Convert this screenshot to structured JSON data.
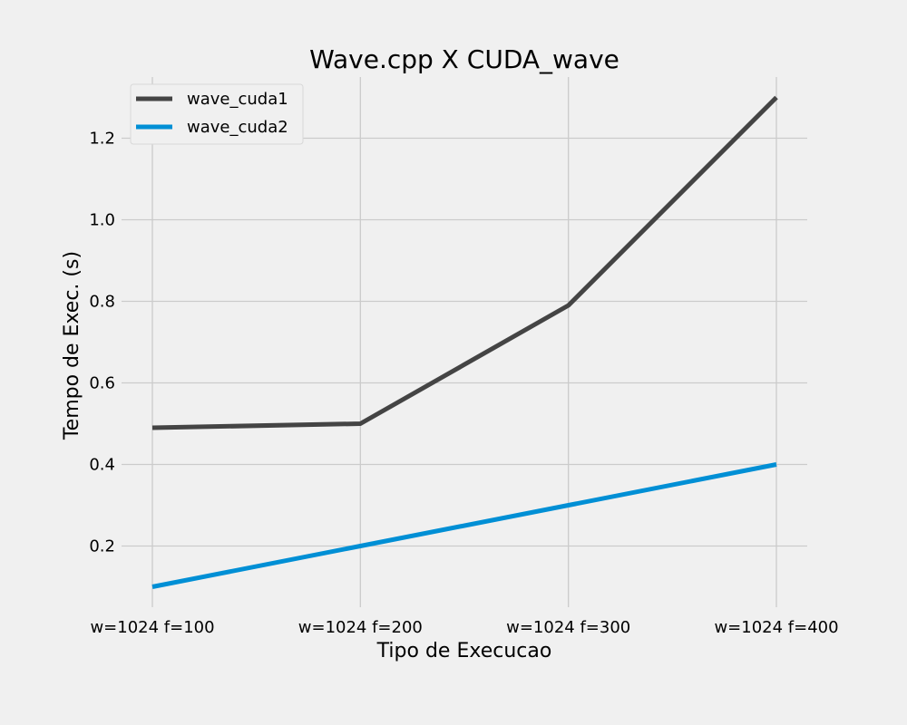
{
  "chart_data": {
    "type": "line",
    "title": "Wave.cpp X CUDA_wave",
    "xlabel": "Tipo de Execucao",
    "ylabel": "Tempo de Exec. (s)",
    "categories": [
      "w=1024 f=100",
      "w=1024 f=200",
      "w=1024 f=300",
      "w=1024 f=400"
    ],
    "ylim": [
      0.05,
      1.35
    ],
    "yticks": [
      0.2,
      0.4,
      0.6,
      0.8,
      1.0,
      1.2
    ],
    "ytick_labels": [
      "0.2",
      "0.4",
      "0.6",
      "0.8",
      "1.0",
      "1.2"
    ],
    "grid": true,
    "legend_position": "top-left",
    "background_color": "#f0f0f0",
    "series": [
      {
        "name": "wave_cuda1",
        "color": "#444444",
        "values": [
          0.49,
          0.5,
          0.79,
          1.3
        ]
      },
      {
        "name": "wave_cuda2",
        "color": "#008fd5",
        "values": [
          0.1,
          0.2,
          0.3,
          0.4
        ]
      }
    ]
  }
}
